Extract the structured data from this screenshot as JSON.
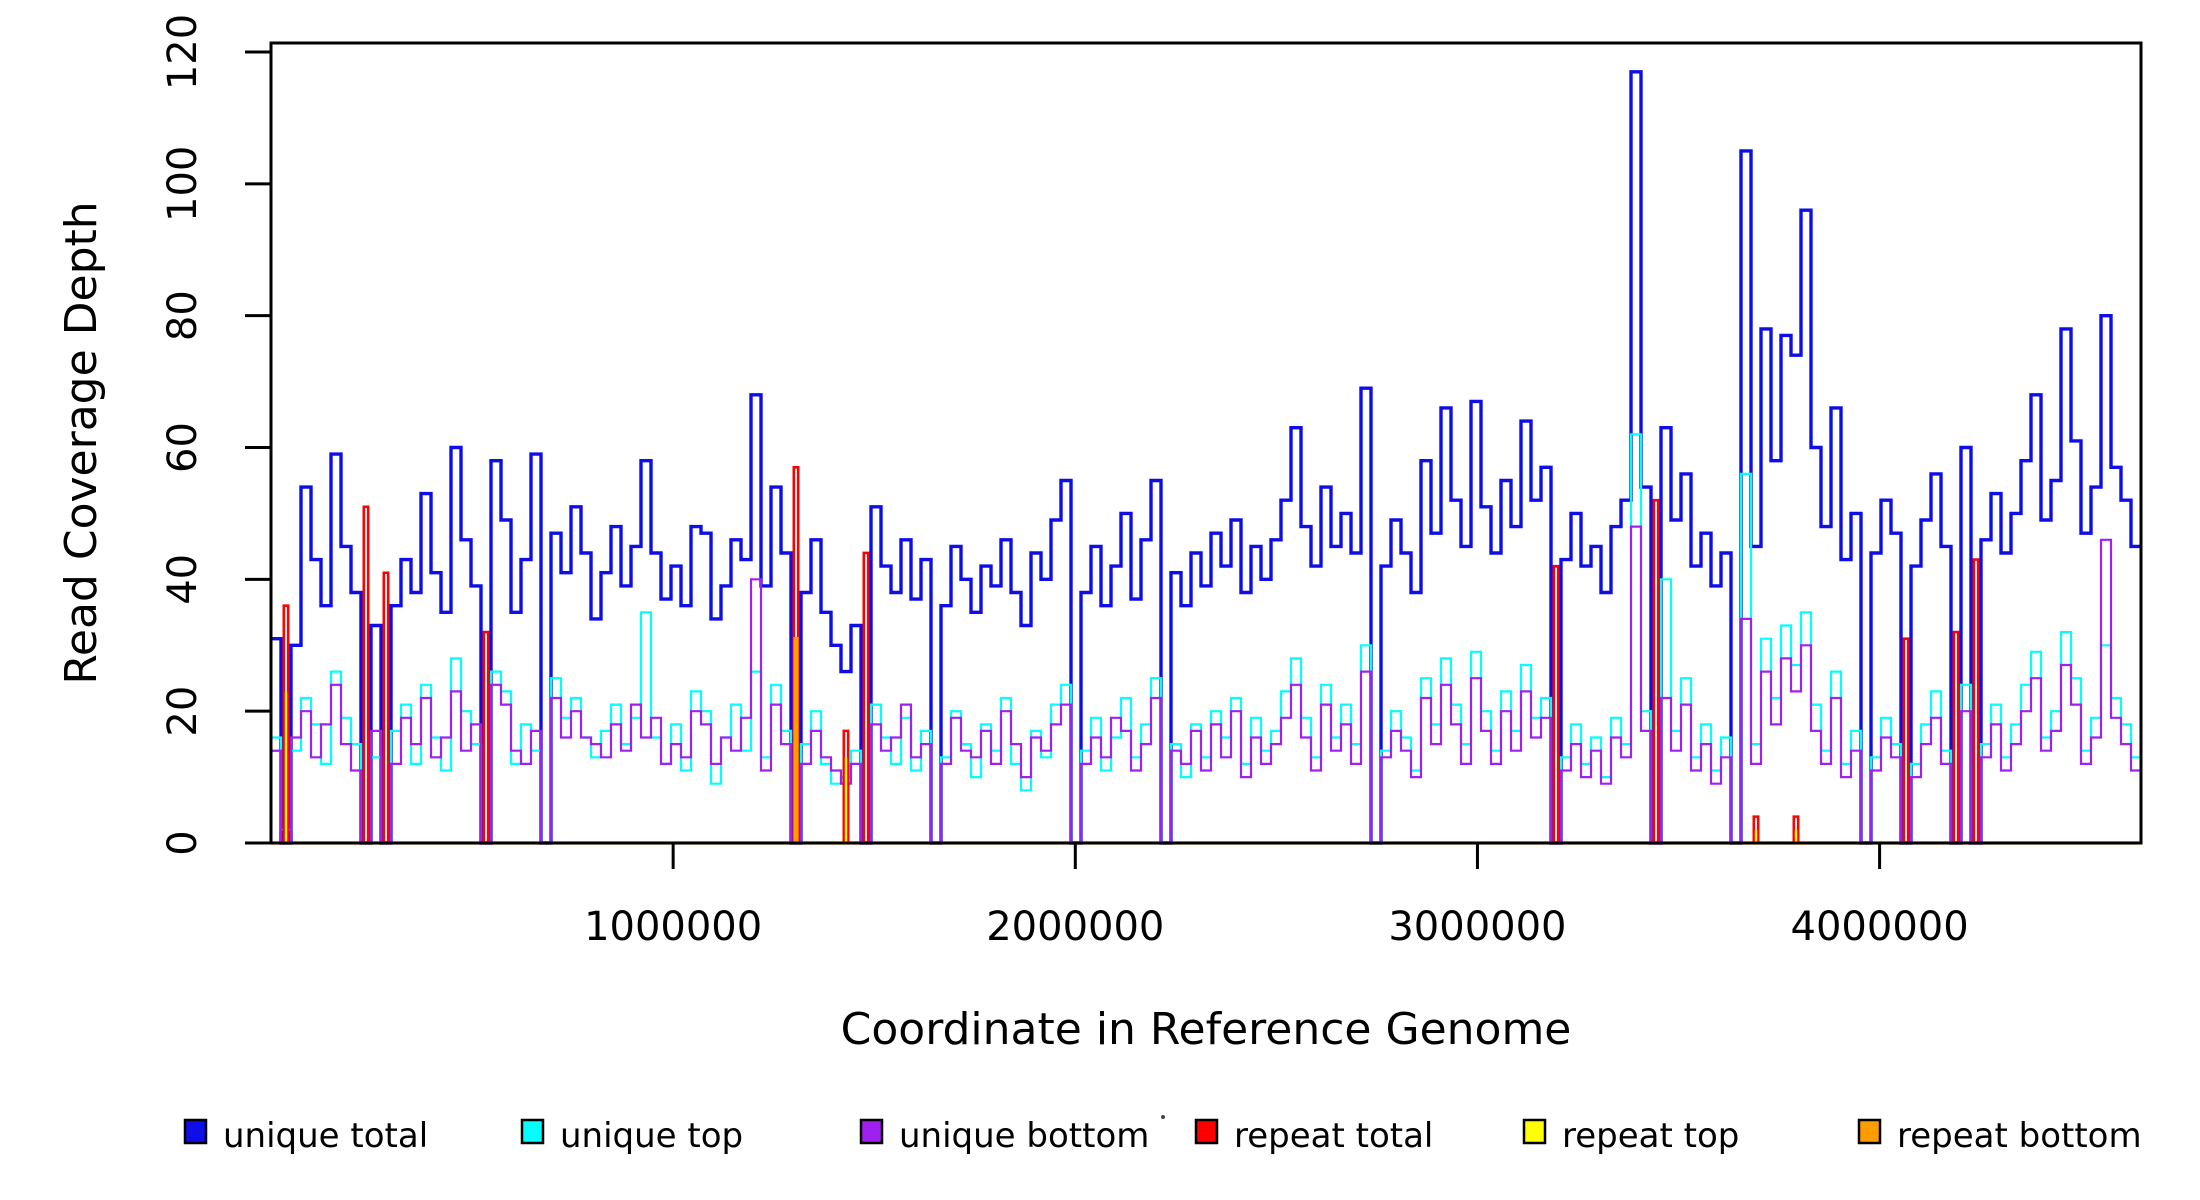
{
  "page": {
    "background": "#ffffff"
  },
  "chart_data": {
    "type": "line",
    "subtype": "step-coverage-plot",
    "title": "",
    "xlabel": "Coordinate in Reference Genome",
    "ylabel": "Read Coverage Depth",
    "grid": false,
    "legend_position": "bottom",
    "x_axis": {
      "min": 0,
      "max": 4650000,
      "ticks": [
        {
          "value": 1000000,
          "label": "1000000"
        },
        {
          "value": 2000000,
          "label": "2000000"
        },
        {
          "value": 3000000,
          "label": "3000000"
        },
        {
          "value": 4000000,
          "label": "4000000"
        }
      ]
    },
    "y_axis": {
      "min": 0,
      "max": 120,
      "ticks": [
        {
          "value": 0,
          "label": "0"
        },
        {
          "value": 20,
          "label": "20"
        },
        {
          "value": 40,
          "label": "40"
        },
        {
          "value": 60,
          "label": "60"
        },
        {
          "value": 80,
          "label": "80"
        },
        {
          "value": 100,
          "label": "100"
        },
        {
          "value": 120,
          "label": "120"
        }
      ]
    },
    "n_bins": 187,
    "bin_size_bp": 24870,
    "draw_order": [
      "unique_total",
      "unique_top",
      "unique_bottom",
      "repeat_total",
      "repeat_top",
      "repeat_bottom"
    ],
    "series": [
      {
        "key": "unique_total",
        "name": "unique total",
        "color": "#0e0ee8",
        "line_width": 3.4,
        "render": "step",
        "values": [
          31,
          0,
          30,
          54,
          43,
          36,
          59,
          45,
          38,
          0,
          33,
          0,
          36,
          43,
          38,
          53,
          41,
          35,
          60,
          46,
          39,
          0,
          58,
          49,
          35,
          43,
          59,
          0,
          47,
          41,
          51,
          44,
          34,
          41,
          48,
          39,
          45,
          58,
          44,
          37,
          42,
          36,
          48,
          47,
          34,
          39,
          46,
          43,
          68,
          39,
          54,
          44,
          0,
          38,
          46,
          35,
          30,
          26,
          33,
          0,
          51,
          42,
          38,
          46,
          37,
          43,
          0,
          36,
          45,
          40,
          35,
          42,
          39,
          46,
          38,
          33,
          44,
          40,
          49,
          55,
          0,
          38,
          45,
          36,
          42,
          50,
          37,
          46,
          55,
          0,
          41,
          36,
          44,
          39,
          47,
          42,
          49,
          38,
          45,
          40,
          46,
          52,
          63,
          48,
          42,
          54,
          45,
          50,
          44,
          69,
          0,
          42,
          49,
          44,
          38,
          58,
          47,
          66,
          52,
          45,
          67,
          51,
          44,
          55,
          48,
          64,
          52,
          57,
          0,
          43,
          50,
          42,
          45,
          38,
          48,
          52,
          117,
          54,
          0,
          63,
          49,
          56,
          42,
          47,
          39,
          44,
          0,
          105,
          45,
          78,
          58,
          77,
          74,
          96,
          60,
          48,
          66,
          43,
          50,
          0,
          44,
          52,
          47,
          0,
          42,
          49,
          56,
          45,
          0,
          60,
          0,
          46,
          53,
          44,
          50,
          58,
          68,
          49,
          55,
          78,
          61,
          47,
          54,
          80,
          57,
          52,
          45
        ]
      },
      {
        "key": "unique_top",
        "name": "unique top",
        "color": "#00ffff",
        "line_width": 2.2,
        "render": "step",
        "values": [
          16,
          2,
          14,
          22,
          18,
          12,
          26,
          19,
          15,
          0,
          13,
          0,
          17,
          21,
          12,
          24,
          16,
          11,
          28,
          20,
          15,
          0,
          26,
          23,
          12,
          18,
          14,
          0,
          25,
          19,
          22,
          16,
          13,
          17,
          21,
          15,
          19,
          35,
          16,
          12,
          18,
          11,
          23,
          20,
          9,
          16,
          21,
          14,
          26,
          13,
          24,
          17,
          0,
          15,
          20,
          12,
          9,
          10,
          14,
          0,
          21,
          16,
          12,
          19,
          11,
          17,
          0,
          13,
          20,
          15,
          10,
          18,
          14,
          22,
          12,
          8,
          17,
          13,
          21,
          24,
          0,
          14,
          19,
          11,
          16,
          22,
          13,
          18,
          25,
          0,
          15,
          10,
          18,
          13,
          20,
          16,
          22,
          12,
          19,
          14,
          17,
          23,
          28,
          19,
          13,
          24,
          16,
          21,
          15,
          30,
          0,
          14,
          20,
          16,
          11,
          25,
          18,
          28,
          21,
          15,
          29,
          20,
          14,
          23,
          17,
          27,
          19,
          22,
          0,
          13,
          18,
          12,
          16,
          10,
          19,
          15,
          62,
          20,
          0,
          40,
          17,
          25,
          13,
          18,
          11,
          16,
          0,
          56,
          15,
          31,
          22,
          33,
          27,
          35,
          21,
          14,
          26,
          12,
          17,
          0,
          13,
          19,
          15,
          0,
          12,
          18,
          23,
          14,
          0,
          24,
          0,
          15,
          21,
          13,
          18,
          24,
          29,
          16,
          20,
          32,
          25,
          14,
          19,
          30,
          22,
          18,
          13
        ]
      },
      {
        "key": "unique_bottom",
        "name": "unique bottom",
        "color": "#a020f0",
        "line_width": 2.2,
        "render": "step",
        "values": [
          14,
          0,
          16,
          20,
          13,
          18,
          24,
          15,
          11,
          0,
          17,
          0,
          12,
          19,
          15,
          22,
          13,
          16,
          23,
          14,
          18,
          0,
          24,
          21,
          14,
          12,
          17,
          0,
          22,
          16,
          20,
          16,
          15,
          13,
          18,
          14,
          21,
          16,
          19,
          12,
          15,
          13,
          20,
          18,
          12,
          16,
          14,
          19,
          40,
          11,
          21,
          15,
          0,
          12,
          17,
          13,
          11,
          9,
          12,
          0,
          18,
          14,
          16,
          21,
          13,
          15,
          0,
          12,
          19,
          14,
          13,
          17,
          12,
          20,
          15,
          10,
          16,
          14,
          18,
          21,
          0,
          12,
          16,
          13,
          19,
          17,
          11,
          15,
          22,
          0,
          14,
          12,
          17,
          11,
          18,
          13,
          20,
          10,
          16,
          12,
          15,
          19,
          24,
          16,
          11,
          21,
          14,
          18,
          12,
          26,
          0,
          13,
          17,
          14,
          10,
          22,
          15,
          24,
          18,
          12,
          25,
          17,
          12,
          20,
          14,
          23,
          16,
          19,
          0,
          11,
          15,
          10,
          14,
          9,
          16,
          13,
          48,
          17,
          0,
          22,
          14,
          21,
          11,
          15,
          9,
          13,
          0,
          34,
          12,
          26,
          18,
          28,
          23,
          30,
          17,
          12,
          22,
          10,
          14,
          0,
          11,
          16,
          13,
          0,
          10,
          15,
          19,
          12,
          0,
          20,
          0,
          13,
          18,
          11,
          15,
          20,
          25,
          14,
          17,
          27,
          21,
          12,
          16,
          46,
          19,
          15,
          11
        ]
      },
      {
        "key": "repeat_total",
        "name": "repeat total",
        "color": "#ff0000",
        "line_width": 2.6,
        "render": "spikes",
        "default": 0,
        "spike_half_width": 2.2,
        "spikes": [
          {
            "bin": 1,
            "value": 36
          },
          {
            "bin": 9,
            "value": 51
          },
          {
            "bin": 11,
            "value": 41
          },
          {
            "bin": 21,
            "value": 32
          },
          {
            "bin": 52,
            "value": 57
          },
          {
            "bin": 57,
            "value": 17
          },
          {
            "bin": 59,
            "value": 44
          },
          {
            "bin": 128,
            "value": 42
          },
          {
            "bin": 138,
            "value": 52
          },
          {
            "bin": 148,
            "value": 4
          },
          {
            "bin": 152,
            "value": 4
          },
          {
            "bin": 163,
            "value": 31
          },
          {
            "bin": 168,
            "value": 32
          },
          {
            "bin": 170,
            "value": 43
          }
        ]
      },
      {
        "key": "repeat_top",
        "name": "repeat top",
        "color": "#ffff00",
        "line_width": 2.4,
        "render": "spikes",
        "default": 0,
        "spike_half_width": 0,
        "spikes": [
          {
            "bin": 1,
            "value": 23
          },
          {
            "bin": 57,
            "value": 13
          },
          {
            "bin": 148,
            "value": 2
          },
          {
            "bin": 152,
            "value": 2
          }
        ]
      },
      {
        "key": "repeat_bottom",
        "name": "repeat bottom",
        "color": "#ff9d00",
        "line_width": 3.2,
        "render": "baseline+spikes",
        "default": 0,
        "spike_half_width": 1,
        "spikes": [
          {
            "bin": 52,
            "value": 31
          }
        ]
      }
    ]
  },
  "decorations": {
    "stray_dot": "present"
  }
}
